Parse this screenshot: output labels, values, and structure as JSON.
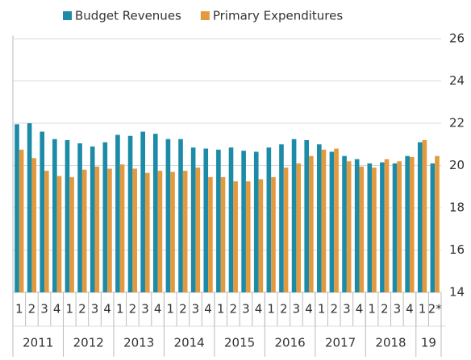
{
  "chart_data": {
    "type": "bar",
    "categories": [
      "1",
      "2",
      "3",
      "4",
      "1",
      "2",
      "3",
      "4",
      "1",
      "2",
      "3",
      "4",
      "1",
      "2",
      "3",
      "4",
      "1",
      "2",
      "3",
      "4",
      "1",
      "2",
      "3",
      "4",
      "1",
      "2",
      "3",
      "4",
      "1",
      "2",
      "3",
      "4",
      "1",
      "2*"
    ],
    "groups": [
      {
        "label": "2011",
        "size": 4
      },
      {
        "label": "2012",
        "size": 4
      },
      {
        "label": "2013",
        "size": 4
      },
      {
        "label": "2014",
        "size": 4
      },
      {
        "label": "2015",
        "size": 4
      },
      {
        "label": "2016",
        "size": 4
      },
      {
        "label": "2017",
        "size": 4
      },
      {
        "label": "2018",
        "size": 4
      },
      {
        "label": "19",
        "size": 2
      }
    ],
    "series": [
      {
        "name": "Budget Revenues",
        "color": "#1c8ba8",
        "values": [
          21.95,
          22.0,
          21.6,
          21.25,
          21.2,
          21.05,
          20.9,
          21.1,
          21.45,
          21.4,
          21.6,
          21.5,
          21.25,
          21.25,
          20.85,
          20.8,
          20.75,
          20.85,
          20.7,
          20.65,
          20.85,
          21.0,
          21.25,
          21.2,
          21.0,
          20.65,
          20.45,
          20.3,
          20.1,
          20.15,
          20.1,
          20.45,
          21.1,
          20.1
        ]
      },
      {
        "name": "Primary Expenditures",
        "color": "#e39a3f",
        "values": [
          20.75,
          20.35,
          19.75,
          19.5,
          19.45,
          19.8,
          19.95,
          19.85,
          20.05,
          19.85,
          19.65,
          19.75,
          19.7,
          19.75,
          19.9,
          19.45,
          19.45,
          19.25,
          19.25,
          19.35,
          19.45,
          19.9,
          20.1,
          20.45,
          20.75,
          20.8,
          20.2,
          19.95,
          19.9,
          20.3,
          20.2,
          20.4,
          21.2,
          20.45
        ]
      }
    ],
    "ylim": [
      14,
      26
    ],
    "yticks": [
      14,
      16,
      18,
      20,
      22,
      24,
      26
    ],
    "grid": true
  }
}
